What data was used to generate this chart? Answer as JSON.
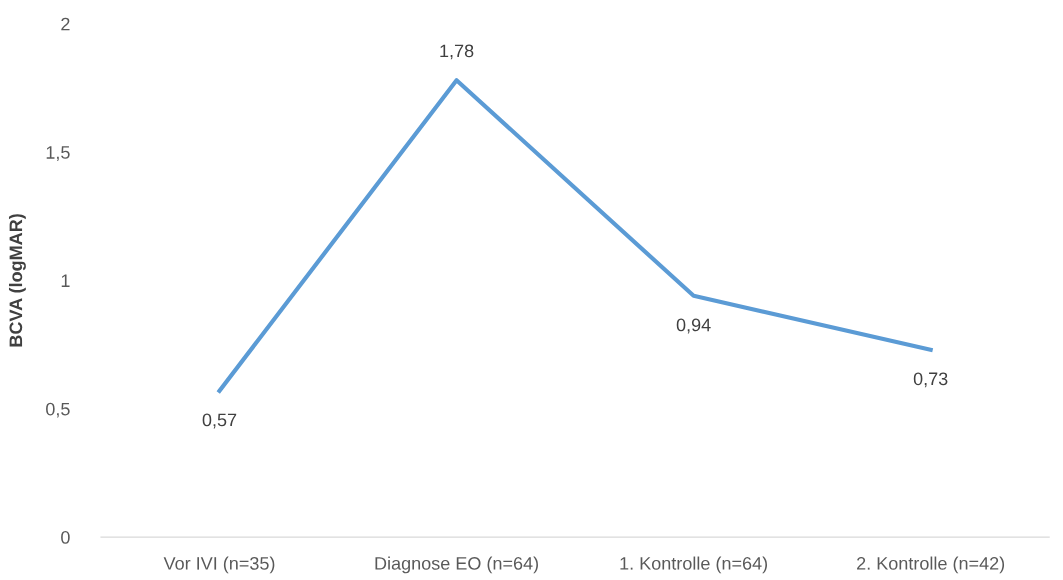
{
  "chart_data": {
    "type": "line",
    "ylabel": "BCVA (logMAR)",
    "categories": [
      "Vor IVI (n=35)",
      "Diagnose EO (n=64)",
      "1. Kontrolle (n=64)",
      "2. Kontrolle (n=42)"
    ],
    "series": [
      {
        "color": "#5b9bd5",
        "values": [
          0.57,
          1.78,
          0.94,
          0.73
        ],
        "value_labels": [
          "0,57",
          "1,78",
          "0,94",
          "0,73"
        ]
      }
    ],
    "ylim": [
      0,
      2
    ],
    "yticks": [
      0,
      {
        "value": 0.5,
        "label": "0,5"
      },
      1,
      {
        "value": 1.5,
        "label": "1,5"
      },
      2
    ],
    "grid": false,
    "legend": false,
    "marker": "none",
    "line_style": "solid"
  }
}
